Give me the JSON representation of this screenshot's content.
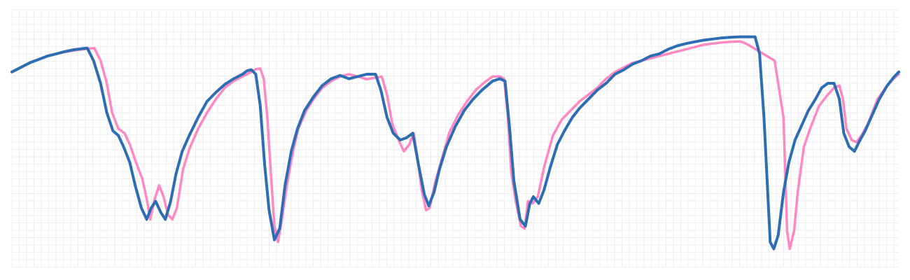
{
  "chart_data": {
    "type": "line",
    "title": "",
    "xlabel": "",
    "ylabel": "",
    "grid": true,
    "legend": "none",
    "xlim": [
      0,
      100
    ],
    "ylim": [
      0,
      100
    ],
    "series": [
      {
        "color": "#ff88c2",
        "width": 3.5,
        "points": [
          [
            0,
            80
          ],
          [
            1,
            82
          ],
          [
            2,
            84
          ],
          [
            3,
            85.5
          ],
          [
            4,
            87
          ],
          [
            5,
            88
          ],
          [
            6,
            88.8
          ],
          [
            7,
            89.5
          ],
          [
            8,
            90
          ],
          [
            8.7,
            90.3
          ],
          [
            9.3,
            90.5
          ],
          [
            10,
            85
          ],
          [
            10.7,
            75
          ],
          [
            11.3,
            62
          ],
          [
            12,
            55
          ],
          [
            12.7,
            53
          ],
          [
            13.3,
            48
          ],
          [
            14,
            40
          ],
          [
            14.7,
            33
          ],
          [
            15.2,
            24
          ],
          [
            15.6,
            15
          ],
          [
            16.1,
            24
          ],
          [
            16.6,
            30
          ],
          [
            17.1,
            25
          ],
          [
            17.6,
            17
          ],
          [
            18.1,
            15
          ],
          [
            18.6,
            20
          ],
          [
            19.3,
            37
          ],
          [
            20,
            46
          ],
          [
            21,
            55
          ],
          [
            22,
            62
          ],
          [
            23,
            68
          ],
          [
            24,
            73
          ],
          [
            25,
            76
          ],
          [
            26,
            78
          ],
          [
            27,
            80
          ],
          [
            27.5,
            81.2
          ],
          [
            28,
            81.5
          ],
          [
            28.4,
            77
          ],
          [
            28.8,
            60
          ],
          [
            29.2,
            35
          ],
          [
            29.6,
            12
          ],
          [
            30,
            5
          ],
          [
            30.4,
            14
          ],
          [
            31,
            30
          ],
          [
            31.7,
            45
          ],
          [
            32.3,
            55
          ],
          [
            33.2,
            63
          ],
          [
            34,
            68
          ],
          [
            35,
            73
          ],
          [
            36,
            76
          ],
          [
            37,
            78
          ],
          [
            38,
            79
          ],
          [
            39,
            78
          ],
          [
            40,
            76.8
          ],
          [
            41,
            77.5
          ],
          [
            41.7,
            78
          ],
          [
            42.3,
            70
          ],
          [
            42.9,
            57
          ],
          [
            43.6,
            50
          ],
          [
            44.2,
            45
          ],
          [
            44.8,
            48
          ],
          [
            45.3,
            53
          ],
          [
            45.7,
            43
          ],
          [
            46.2,
            28
          ],
          [
            46.7,
            19
          ],
          [
            47.1,
            20
          ],
          [
            47.7,
            31
          ],
          [
            48.5,
            42
          ],
          [
            49.3,
            53
          ],
          [
            50.3,
            61
          ],
          [
            51.3,
            67
          ],
          [
            52.3,
            72
          ],
          [
            53.3,
            75.5
          ],
          [
            54.2,
            78
          ],
          [
            55,
            78
          ],
          [
            55.5,
            77
          ],
          [
            55.9,
            61
          ],
          [
            56.3,
            36
          ],
          [
            56.8,
            23
          ],
          [
            57.4,
            12
          ],
          [
            57.8,
            11
          ],
          [
            58.2,
            23
          ],
          [
            58.7,
            22
          ],
          [
            59.3,
            25
          ],
          [
            60,
            38
          ],
          [
            61,
            52
          ],
          [
            62,
            59
          ],
          [
            63,
            63
          ],
          [
            64,
            67
          ],
          [
            65,
            70
          ],
          [
            66,
            73
          ],
          [
            67,
            77
          ],
          [
            68,
            80
          ],
          [
            69,
            82
          ],
          [
            70,
            84
          ],
          [
            71,
            85
          ],
          [
            72,
            86
          ],
          [
            73,
            87
          ],
          [
            74,
            88
          ],
          [
            75,
            89
          ],
          [
            76,
            90
          ],
          [
            77,
            91
          ],
          [
            78,
            92
          ],
          [
            79,
            92.5
          ],
          [
            80,
            93
          ],
          [
            81,
            93.3
          ],
          [
            82,
            93.5
          ],
          [
            82.5,
            93
          ],
          [
            83,
            92
          ],
          [
            86,
            85
          ],
          [
            87,
            60
          ],
          [
            87.4,
            10
          ],
          [
            87.7,
            2
          ],
          [
            88.2,
            10
          ],
          [
            88.6,
            27
          ],
          [
            89.3,
            47
          ],
          [
            90,
            55
          ],
          [
            91,
            65
          ],
          [
            92,
            70
          ],
          [
            92.7,
            73
          ],
          [
            93.3,
            74
          ],
          [
            93.7,
            68
          ],
          [
            94.1,
            55
          ],
          [
            94.7,
            50
          ],
          [
            95.2,
            49
          ],
          [
            95.8,
            52
          ],
          [
            96.5,
            57
          ],
          [
            97,
            62
          ],
          [
            97.6,
            68
          ],
          [
            98.5,
            73
          ],
          [
            99.4,
            77
          ],
          [
            100,
            79
          ]
        ]
      },
      {
        "color": "#2e6db4",
        "width": 4,
        "points": [
          [
            0,
            80
          ],
          [
            1,
            82
          ],
          [
            2,
            84
          ],
          [
            3,
            85.5
          ],
          [
            4,
            87
          ],
          [
            5,
            88
          ],
          [
            6,
            89
          ],
          [
            7,
            89.8
          ],
          [
            8,
            90.3
          ],
          [
            8.5,
            90.5
          ],
          [
            9.2,
            85
          ],
          [
            10,
            75
          ],
          [
            10.7,
            62
          ],
          [
            11.4,
            54
          ],
          [
            12,
            52
          ],
          [
            12.6,
            47
          ],
          [
            13.3,
            40
          ],
          [
            13.9,
            30
          ],
          [
            14.6,
            20
          ],
          [
            15.2,
            15
          ],
          [
            15.7,
            20
          ],
          [
            16.2,
            23
          ],
          [
            16.8,
            18
          ],
          [
            17.3,
            15
          ],
          [
            17.9,
            23
          ],
          [
            18.5,
            35
          ],
          [
            19.2,
            45
          ],
          [
            20,
            52
          ],
          [
            21,
            60
          ],
          [
            22,
            67
          ],
          [
            23,
            71
          ],
          [
            24,
            74.5
          ],
          [
            25,
            77
          ],
          [
            26,
            79
          ],
          [
            26.5,
            80.5
          ],
          [
            27,
            81
          ],
          [
            27.5,
            79
          ],
          [
            28,
            65
          ],
          [
            28.5,
            39
          ],
          [
            29,
            19
          ],
          [
            29.6,
            6
          ],
          [
            30.2,
            11
          ],
          [
            30.8,
            30
          ],
          [
            31.5,
            45
          ],
          [
            32.2,
            55
          ],
          [
            33,
            63
          ],
          [
            34,
            69
          ],
          [
            35,
            74
          ],
          [
            36,
            77
          ],
          [
            37,
            78.5
          ],
          [
            38,
            77
          ],
          [
            39,
            78
          ],
          [
            40,
            79
          ],
          [
            41,
            79
          ],
          [
            41.6,
            72
          ],
          [
            42.3,
            60
          ],
          [
            43,
            53
          ],
          [
            43.8,
            50
          ],
          [
            44.5,
            51
          ],
          [
            45.2,
            53
          ],
          [
            45.8,
            40
          ],
          [
            46.5,
            26
          ],
          [
            47,
            21
          ],
          [
            47.6,
            27
          ],
          [
            48.2,
            37
          ],
          [
            49,
            47
          ],
          [
            50,
            56
          ],
          [
            51,
            63
          ],
          [
            52,
            68
          ],
          [
            53,
            72
          ],
          [
            54.2,
            76
          ],
          [
            55,
            77
          ],
          [
            55.6,
            76
          ],
          [
            56.1,
            56
          ],
          [
            56.6,
            32
          ],
          [
            57.3,
            15
          ],
          [
            57.9,
            12
          ],
          [
            58.4,
            22
          ],
          [
            58.8,
            25
          ],
          [
            59.4,
            22
          ],
          [
            60,
            28
          ],
          [
            60.7,
            38
          ],
          [
            61.5,
            48
          ],
          [
            62.3,
            54
          ],
          [
            63.2,
            60
          ],
          [
            64,
            64
          ],
          [
            65,
            68
          ],
          [
            66,
            72
          ],
          [
            67,
            75
          ],
          [
            68,
            79
          ],
          [
            69,
            81
          ],
          [
            70,
            83.5
          ],
          [
            71,
            85
          ],
          [
            72,
            87
          ],
          [
            73,
            88
          ],
          [
            74,
            90
          ],
          [
            75,
            91.5
          ],
          [
            76,
            92.5
          ],
          [
            77,
            93.3
          ],
          [
            78,
            94
          ],
          [
            79,
            94.5
          ],
          [
            80,
            95
          ],
          [
            81,
            95.3
          ],
          [
            82,
            95.5
          ],
          [
            83,
            95.5
          ],
          [
            83.8,
            95.5
          ],
          [
            84.3,
            88
          ],
          [
            84.8,
            60
          ],
          [
            85.5,
            5
          ],
          [
            85.9,
            2
          ],
          [
            86.4,
            8
          ],
          [
            87,
            27
          ],
          [
            87.6,
            40
          ],
          [
            88.3,
            50
          ],
          [
            89,
            56
          ],
          [
            89.8,
            63
          ],
          [
            90.6,
            68
          ],
          [
            91.3,
            73
          ],
          [
            92,
            75
          ],
          [
            92.7,
            75
          ],
          [
            93.3,
            68
          ],
          [
            93.8,
            53
          ],
          [
            94.4,
            47
          ],
          [
            95,
            45
          ],
          [
            95.5,
            49
          ],
          [
            96.2,
            54
          ],
          [
            97,
            61
          ],
          [
            97.8,
            68
          ],
          [
            98.7,
            74
          ],
          [
            99.5,
            78
          ],
          [
            100,
            80
          ]
        ]
      }
    ]
  }
}
